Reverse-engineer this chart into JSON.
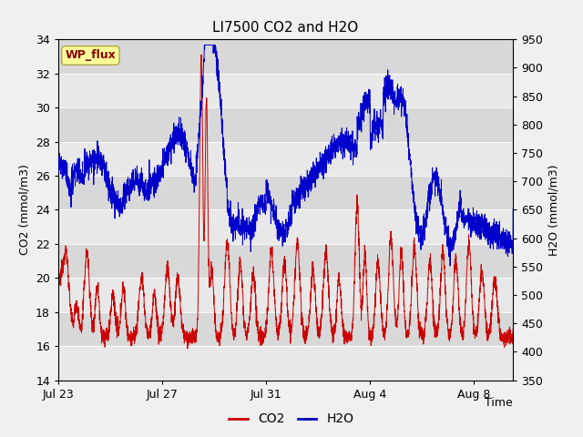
{
  "title": "LI7500 CO2 and H2O",
  "xlabel": "Time",
  "ylabel_left": "CO2 (mmol/m3)",
  "ylabel_right": "H2O (mmol/m3)",
  "ylim_left": [
    14,
    34
  ],
  "ylim_right": [
    350,
    950
  ],
  "yticks_left": [
    14,
    16,
    18,
    20,
    22,
    24,
    26,
    28,
    30,
    32,
    34
  ],
  "yticks_right": [
    350,
    400,
    450,
    500,
    550,
    600,
    650,
    700,
    750,
    800,
    850,
    900,
    950
  ],
  "xtick_labels": [
    "Jul 23",
    "Jul 27",
    "Jul 31",
    "Aug 4",
    "Aug 8"
  ],
  "xtick_positions": [
    0,
    4,
    8,
    12,
    16
  ],
  "xlim": [
    0,
    17.5
  ],
  "co2_color": "#cc0000",
  "h2o_color": "#0000cc",
  "fig_bg_color": "#f0f0f0",
  "plot_bg_color": "#e8e8e8",
  "band_light": "#e8e8e8",
  "band_dark": "#d8d8d8",
  "wp_flux_bg": "#ffff99",
  "wp_flux_border": "#aaaa44",
  "wp_flux_text_color": "#880000",
  "title_fontsize": 11,
  "axis_label_fontsize": 9,
  "tick_fontsize": 9,
  "legend_fontsize": 10
}
